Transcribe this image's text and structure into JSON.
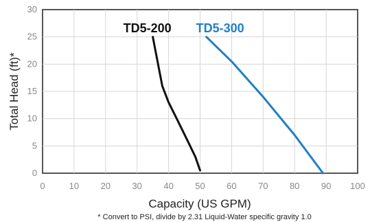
{
  "chart_data": {
    "type": "line",
    "title": "",
    "xlabel": "Capacity (US GPM)",
    "ylabel": "Total Head (ft)*",
    "xlim": [
      0,
      100
    ],
    "ylim": [
      0,
      30
    ],
    "xticks": [
      0,
      10,
      20,
      30,
      40,
      50,
      60,
      70,
      80,
      90,
      100
    ],
    "yticks": [
      0,
      5,
      10,
      15,
      20,
      25,
      30
    ],
    "grid": true,
    "series": [
      {
        "name": "TD5-200",
        "color": "#111111",
        "x": [
          35,
          36,
          37,
          38,
          40,
          43,
          46,
          48.5,
          50
        ],
        "y": [
          25,
          22,
          19,
          16,
          13,
          9.5,
          6,
          3,
          0.5
        ]
      },
      {
        "name": "TD5-300",
        "color": "#1f7fc6",
        "x": [
          52,
          60,
          70,
          80,
          89
        ],
        "y": [
          25,
          20.5,
          14,
          7,
          0
        ]
      }
    ],
    "footnote": "* Convert to PSI, divide by 2.31  Liquid-Water specific gravity 1.0"
  }
}
